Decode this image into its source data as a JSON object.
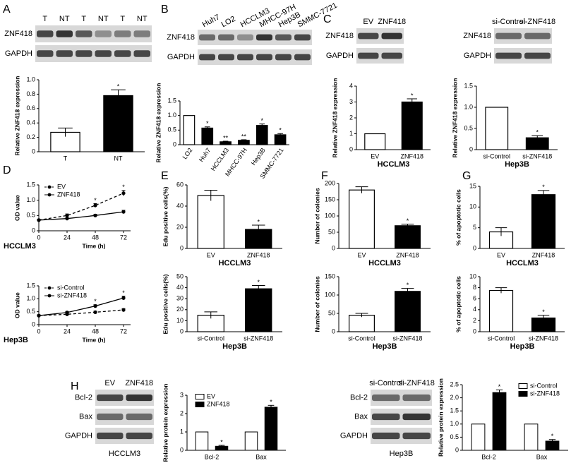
{
  "panels": [
    "A",
    "B",
    "C",
    "D",
    "E",
    "F",
    "G",
    "H"
  ],
  "blots": [
    {
      "lanes": [
        "T",
        "NT",
        "T",
        "NT",
        "T",
        "NT"
      ],
      "rows": [
        "ZNF418",
        "GAPDH"
      ]
    },
    {
      "lanes": [
        "Huh7",
        "LO2",
        "HCCLM3",
        "MHCC-97H",
        "Hep3B",
        "SMMC-7721"
      ],
      "rows": [
        "ZNF418",
        "GAPDH"
      ]
    },
    {
      "lanes": [
        "EV",
        "ZNF418"
      ],
      "rows": [
        "ZNF418",
        "GAPDH"
      ]
    },
    {
      "lanes": [
        "si-Control",
        "si-ZNF418"
      ],
      "rows": [
        "ZNF418",
        "GAPDH"
      ]
    },
    {
      "lanes": [
        "EV",
        "ZNF418"
      ],
      "rows": [
        "Bcl-2",
        "Bax",
        "GAPDH"
      ],
      "caption": "HCCLM3"
    },
    {
      "lanes": [
        "si-Control",
        "si-ZNF418"
      ],
      "rows": [
        "Bcl-2",
        "Bax",
        "GAPDH"
      ],
      "caption": "Hep3B"
    }
  ],
  "chart_data": [
    {
      "type": "bar",
      "ylabel": "Relative ZNF418 expression",
      "categories": [
        "T",
        "NT"
      ],
      "values": [
        0.27,
        0.78
      ],
      "errors": [
        0.06,
        0.08
      ],
      "colors": [
        "#ffffff",
        "#000000"
      ],
      "significance": [
        null,
        "*"
      ],
      "ylim": [
        0,
        1
      ],
      "yticks": [
        0,
        0.2,
        0.4,
        0.6,
        0.8,
        {
          "value": 1,
          "label": "1.0"
        }
      ]
    },
    {
      "type": "bar",
      "ylabel": "Relative ZNF418 expression",
      "categories": [
        "LO2",
        "Huh7",
        "HCCLM3",
        "MHCC-97H",
        "Hep3B",
        "SMMC-7721"
      ],
      "values": [
        1.0,
        0.57,
        0.1,
        0.15,
        0.66,
        0.34
      ],
      "errors": [
        0,
        0.04,
        0.02,
        0.02,
        0.05,
        0.04
      ],
      "colors": [
        "#ffffff",
        "#000000",
        "#000000",
        "#000000",
        "#000000",
        "#000000"
      ],
      "significance": [
        null,
        "*",
        "**",
        "**",
        "*",
        "*"
      ],
      "ylim": [
        0,
        1.5
      ],
      "yticks": [
        0,
        0.5,
        {
          "value": 1,
          "label": "1.0"
        },
        1.5
      ]
    },
    {
      "type": "bar",
      "ylabel": "Relative ZNF418 expression",
      "caption": "HCCLM3",
      "categories": [
        "EV",
        "ZNF418"
      ],
      "values": [
        1.0,
        3.0
      ],
      "errors": [
        0,
        0.2
      ],
      "colors": [
        "#ffffff",
        "#000000"
      ],
      "significance": [
        null,
        "*"
      ],
      "ylim": [
        0,
        4
      ],
      "yticks": [
        0,
        1,
        2,
        3,
        4
      ]
    },
    {
      "type": "bar",
      "ylabel": "Relative ZNF418 expression",
      "caption": "Hep3B",
      "categories": [
        "si-Control",
        "si-ZNF418"
      ],
      "values": [
        1.0,
        0.28
      ],
      "errors": [
        0,
        0.05
      ],
      "colors": [
        "#ffffff",
        "#000000"
      ],
      "significance": [
        null,
        "*"
      ],
      "ylim": [
        0,
        1.5
      ],
      "yticks": [
        0,
        0.5,
        {
          "value": 1,
          "label": "1.0"
        },
        1.5
      ]
    },
    {
      "type": "line",
      "ylabel": "OD value",
      "xlabel": "Time (h)",
      "caption": "HCCLM3",
      "x": [
        0,
        24,
        48,
        72
      ],
      "xlim": [
        0,
        72
      ],
      "xticks": [
        0,
        24,
        48,
        72
      ],
      "ylim": [
        0,
        1.5
      ],
      "yticks": [
        0,
        0.5,
        {
          "value": 1,
          "label": "1.0"
        },
        1.5
      ],
      "legend": "upper left",
      "series": [
        {
          "name": "EV",
          "color": "#000000",
          "style": "dashed",
          "values": [
            0.35,
            0.5,
            0.83,
            1.23
          ],
          "errors": [
            0.03,
            0.05,
            0.06,
            0.09
          ],
          "significance": [
            null,
            null,
            "*",
            "*"
          ]
        },
        {
          "name": "ZNF418",
          "color": "#000000",
          "style": "solid",
          "values": [
            0.35,
            0.4,
            0.5,
            0.62
          ],
          "errors": [
            0.02,
            0.03,
            0.04,
            0.05
          ]
        }
      ]
    },
    {
      "type": "line",
      "ylabel": "OD value",
      "xlabel": "Time (h)",
      "caption": "Hep3B",
      "x": [
        0,
        24,
        48,
        72
      ],
      "xlim": [
        0,
        72
      ],
      "xticks": [
        0,
        24,
        48,
        72
      ],
      "ylim": [
        0,
        1.5
      ],
      "yticks": [
        0,
        0.5,
        {
          "value": 1,
          "label": "1.0"
        },
        1.5
      ],
      "legend": "upper left",
      "series": [
        {
          "name": "si-Control",
          "color": "#000000",
          "style": "dashed",
          "values": [
            0.35,
            0.4,
            0.48,
            0.57
          ],
          "errors": [
            0.03,
            0.03,
            0.04,
            0.05
          ]
        },
        {
          "name": "si-ZNF418",
          "color": "#000000",
          "style": "solid",
          "values": [
            0.35,
            0.47,
            0.72,
            1.03
          ],
          "errors": [
            0.02,
            0.04,
            0.05,
            0.07
          ],
          "significance": [
            null,
            null,
            "*",
            "*"
          ]
        }
      ]
    },
    {
      "type": "bar",
      "ylabel": "Edu positive cells(%)",
      "caption": "HCCLM3",
      "categories": [
        "EV",
        "ZNF418"
      ],
      "values": [
        50,
        18
      ],
      "errors": [
        5,
        4
      ],
      "colors": [
        "#ffffff",
        "#000000"
      ],
      "significance": [
        null,
        "*"
      ],
      "ylim": [
        0,
        60
      ],
      "yticks": [
        0,
        20,
        40,
        60
      ]
    },
    {
      "type": "bar",
      "ylabel": "Edu positive cells(%)",
      "caption": "Hep3B",
      "categories": [
        "si-Control",
        "si-ZNF418"
      ],
      "values": [
        15,
        39
      ],
      "errors": [
        3,
        3
      ],
      "colors": [
        "#ffffff",
        "#000000"
      ],
      "significance": [
        null,
        "*"
      ],
      "ylim": [
        0,
        50
      ],
      "yticks": [
        0,
        10,
        20,
        30,
        40,
        50
      ]
    },
    {
      "type": "bar",
      "ylabel": "Number of colonies",
      "caption": "HCCLM3",
      "categories": [
        "EV",
        "ZNF418"
      ],
      "values": [
        180,
        70
      ],
      "errors": [
        10,
        5
      ],
      "colors": [
        "#ffffff",
        "#000000"
      ],
      "significance": [
        null,
        "*"
      ],
      "ylim": [
        0,
        200
      ],
      "yticks": [
        0,
        50,
        100,
        150,
        200
      ]
    },
    {
      "type": "bar",
      "ylabel": "Number of colonies",
      "caption": "Hep3B",
      "categories": [
        "si-Control",
        "si-ZNF418"
      ],
      "values": [
        45,
        110
      ],
      "errors": [
        5,
        8
      ],
      "colors": [
        "#ffffff",
        "#000000"
      ],
      "significance": [
        null,
        "*"
      ],
      "ylim": [
        0,
        150
      ],
      "yticks": [
        0,
        50,
        100,
        150
      ]
    },
    {
      "type": "bar",
      "ylabel": "% of apoptotic cells",
      "caption": "HCCLM3",
      "categories": [
        "EV",
        "ZNF418"
      ],
      "values": [
        4,
        13
      ],
      "errors": [
        1,
        1
      ],
      "colors": [
        "#ffffff",
        "#000000"
      ],
      "significance": [
        null,
        "*"
      ],
      "ylim": [
        0,
        15
      ],
      "yticks": [
        0,
        5,
        10,
        15
      ]
    },
    {
      "type": "bar",
      "ylabel": "% of apoptotic cells",
      "caption": "Hep3B",
      "categories": [
        "si-Control",
        "si-ZNF418"
      ],
      "values": [
        7.5,
        2.5
      ],
      "errors": [
        0.5,
        0.5
      ],
      "colors": [
        "#ffffff",
        "#000000"
      ],
      "significance": [
        null,
        "*"
      ],
      "ylim": [
        0,
        10
      ],
      "yticks": [
        0,
        2,
        4,
        6,
        8,
        10
      ]
    },
    {
      "type": "grouped_bar",
      "ylabel": "Relative protein expression",
      "categories": [
        "Bcl-2",
        "Bax"
      ],
      "ylim": [
        0,
        3
      ],
      "yticks": [
        0,
        1,
        2,
        3
      ],
      "legend": "upper left",
      "series": [
        {
          "name": "EV",
          "color": "#ffffff",
          "values": [
            1,
            1
          ],
          "errors": [
            0,
            0
          ]
        },
        {
          "name": "ZNF418",
          "color": "#000000",
          "values": [
            0.22,
            2.35
          ],
          "errors": [
            0.05,
            0.1
          ],
          "significance": [
            "*",
            "*"
          ]
        }
      ]
    },
    {
      "type": "grouped_bar",
      "ylabel": "Relative protein expression",
      "categories": [
        "Bcl-2",
        "Bax"
      ],
      "ylim": [
        0,
        2.5
      ],
      "yticks": [
        0,
        0.5,
        {
          "value": 1,
          "label": "1.0"
        },
        1.5,
        {
          "value": 2,
          "label": "2.0"
        },
        2.5
      ],
      "legend": "upper right",
      "series": [
        {
          "name": "si-Control",
          "color": "#ffffff",
          "values": [
            1,
            1
          ],
          "errors": [
            0,
            0
          ]
        },
        {
          "name": "si-ZNF418",
          "color": "#000000",
          "values": [
            2.2,
            0.35
          ],
          "errors": [
            0.1,
            0.06
          ],
          "significance": [
            "*",
            "*"
          ]
        }
      ]
    }
  ]
}
